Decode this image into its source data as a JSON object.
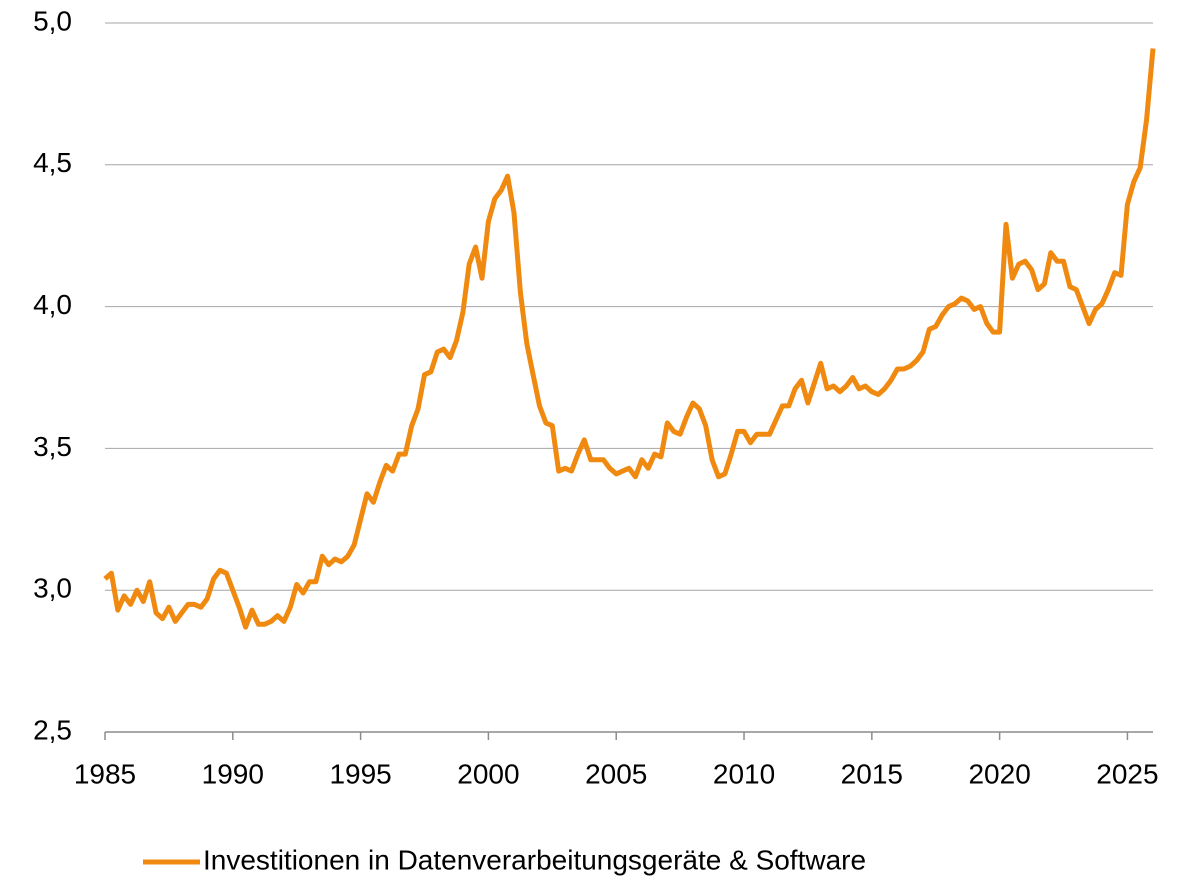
{
  "chart_data": {
    "type": "line",
    "x": [
      1985,
      1985.25,
      1985.5,
      1985.75,
      1986,
      1986.25,
      1986.5,
      1986.75,
      1987,
      1987.25,
      1987.5,
      1987.75,
      1988,
      1988.25,
      1988.5,
      1988.75,
      1989,
      1989.25,
      1989.5,
      1989.75,
      1990,
      1990.25,
      1990.5,
      1990.75,
      1991,
      1991.25,
      1991.5,
      1991.75,
      1992,
      1992.25,
      1992.5,
      1992.75,
      1993,
      1993.25,
      1993.5,
      1993.75,
      1994,
      1994.25,
      1994.5,
      1994.75,
      1995,
      1995.25,
      1995.5,
      1995.75,
      1996,
      1996.25,
      1996.5,
      1996.75,
      1997,
      1997.25,
      1997.5,
      1997.75,
      1998,
      1998.25,
      1998.5,
      1998.75,
      1999,
      1999.25,
      1999.5,
      1999.75,
      2000,
      2000.25,
      2000.5,
      2000.75,
      2001,
      2001.25,
      2001.5,
      2001.75,
      2002,
      2002.25,
      2002.5,
      2002.75,
      2003,
      2003.25,
      2003.5,
      2003.75,
      2004,
      2004.25,
      2004.5,
      2004.75,
      2005,
      2005.25,
      2005.5,
      2005.75,
      2006,
      2006.25,
      2006.5,
      2006.75,
      2007,
      2007.25,
      2007.5,
      2007.75,
      2008,
      2008.25,
      2008.5,
      2008.75,
      2009,
      2009.25,
      2009.5,
      2009.75,
      2010,
      2010.25,
      2010.5,
      2010.75,
      2011,
      2011.25,
      2011.5,
      2011.75,
      2012,
      2012.25,
      2012.5,
      2012.75,
      2013,
      2013.25,
      2013.5,
      2013.75,
      2014,
      2014.25,
      2014.5,
      2014.75,
      2015,
      2015.25,
      2015.5,
      2015.75,
      2016,
      2016.25,
      2016.5,
      2016.75,
      2017,
      2017.25,
      2017.5,
      2017.75,
      2018,
      2018.25,
      2018.5,
      2018.75,
      2019,
      2019.25,
      2019.5,
      2019.75,
      2020,
      2020.25,
      2020.5,
      2020.75,
      2021,
      2021.25,
      2021.5,
      2021.75,
      2022,
      2022.25,
      2022.5,
      2022.75,
      2023,
      2023.25,
      2023.5,
      2023.75,
      2024,
      2024.25,
      2024.5,
      2024.75,
      2025,
      2025.25,
      2025.5,
      2025.75,
      2026
    ],
    "series": [
      {
        "name": "Investitionen in Datenverarbeitungsgeräte & Software",
        "color": "#f0890f",
        "values": [
          3.04,
          3.06,
          2.93,
          2.98,
          2.95,
          3.0,
          2.96,
          3.03,
          2.92,
          2.9,
          2.94,
          2.89,
          2.92,
          2.95,
          2.95,
          2.94,
          2.97,
          3.04,
          3.07,
          3.06,
          3.0,
          2.94,
          2.87,
          2.93,
          2.88,
          2.88,
          2.89,
          2.91,
          2.89,
          2.94,
          3.02,
          2.99,
          3.03,
          3.03,
          3.12,
          3.09,
          3.11,
          3.1,
          3.12,
          3.16,
          3.25,
          3.34,
          3.31,
          3.38,
          3.44,
          3.42,
          3.48,
          3.48,
          3.58,
          3.64,
          3.76,
          3.77,
          3.84,
          3.85,
          3.82,
          3.88,
          3.98,
          4.15,
          4.21,
          4.1,
          4.3,
          4.38,
          4.41,
          4.46,
          4.33,
          4.05,
          3.87,
          3.76,
          3.65,
          3.59,
          3.58,
          3.42,
          3.43,
          3.42,
          3.48,
          3.53,
          3.46,
          3.46,
          3.46,
          3.43,
          3.41,
          3.42,
          3.43,
          3.4,
          3.46,
          3.43,
          3.48,
          3.47,
          3.59,
          3.56,
          3.55,
          3.61,
          3.66,
          3.64,
          3.58,
          3.46,
          3.4,
          3.41,
          3.48,
          3.56,
          3.56,
          3.52,
          3.55,
          3.55,
          3.55,
          3.6,
          3.65,
          3.65,
          3.71,
          3.74,
          3.66,
          3.73,
          3.8,
          3.71,
          3.72,
          3.7,
          3.72,
          3.75,
          3.71,
          3.72,
          3.7,
          3.69,
          3.71,
          3.74,
          3.78,
          3.78,
          3.79,
          3.81,
          3.84,
          3.92,
          3.93,
          3.97,
          4.0,
          4.01,
          4.03,
          4.02,
          3.99,
          4.0,
          3.94,
          3.91,
          3.91,
          4.29,
          4.1,
          4.15,
          4.16,
          4.13,
          4.06,
          4.08,
          4.19,
          4.16,
          4.16,
          4.07,
          4.06,
          4.0,
          3.94,
          3.99,
          4.01,
          4.06,
          4.12,
          4.11,
          4.36,
          4.44,
          4.49,
          4.66,
          4.91
        ]
      }
    ],
    "xlim": [
      1985,
      2026
    ],
    "xticks": [
      1985,
      1990,
      1995,
      2000,
      2005,
      2010,
      2015,
      2020,
      2025
    ],
    "ylim": [
      2.5,
      5
    ],
    "yticks": [
      {
        "value": 2.5,
        "label": "2,5"
      },
      {
        "value": 3,
        "label": "3,0"
      },
      {
        "value": 3.5,
        "label": "3,5"
      },
      {
        "value": 4,
        "label": "4,0"
      },
      {
        "value": 4.5,
        "label": "4,5"
      },
      {
        "value": 5,
        "label": "5,0"
      }
    ],
    "grid": true,
    "legend": "bottom"
  }
}
